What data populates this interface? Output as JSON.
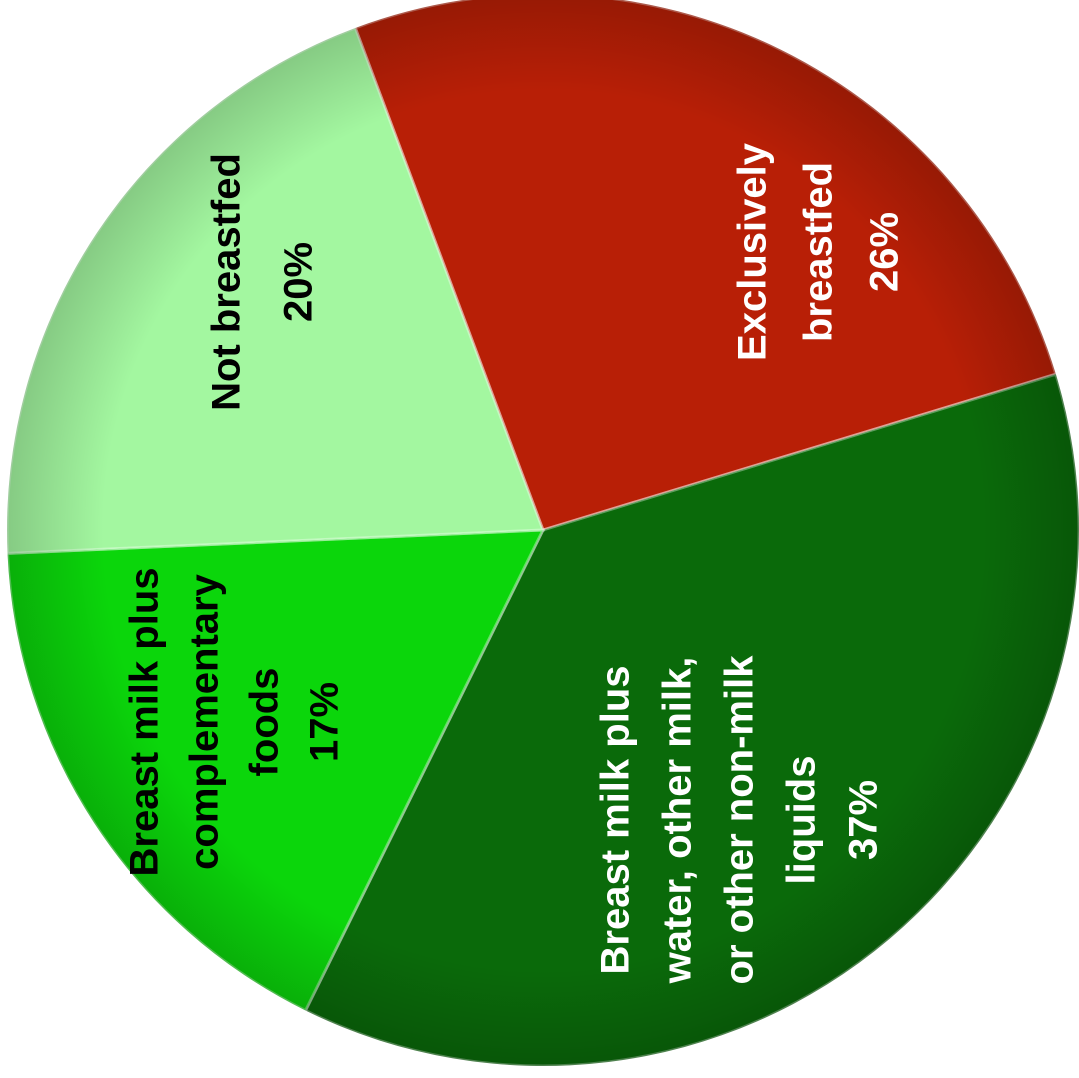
{
  "chart_data": {
    "type": "pie",
    "slices": [
      {
        "label_lines": [
          "Exclusively",
          "breastfed"
        ],
        "value_label": "26%",
        "value": 26,
        "color": "#b81f06",
        "text_color": "#ffffff"
      },
      {
        "label_lines": [
          "Breast milk plus",
          "water, other milk,",
          "or other non-milk",
          "liquids"
        ],
        "value_label": "37%",
        "value": 37,
        "color": "#0a6a0a",
        "text_color": "#ffffff"
      },
      {
        "label_lines": [
          "Breast milk plus",
          "complementary",
          "foods"
        ],
        "value_label": "17%",
        "value": 17,
        "color": "#0bd60b",
        "text_color": "#000000"
      },
      {
        "label_lines": [
          "Not breastfed"
        ],
        "value_label": "20%",
        "value": 20,
        "color": "#a3f7a0",
        "text_color": "#000000"
      }
    ]
  }
}
